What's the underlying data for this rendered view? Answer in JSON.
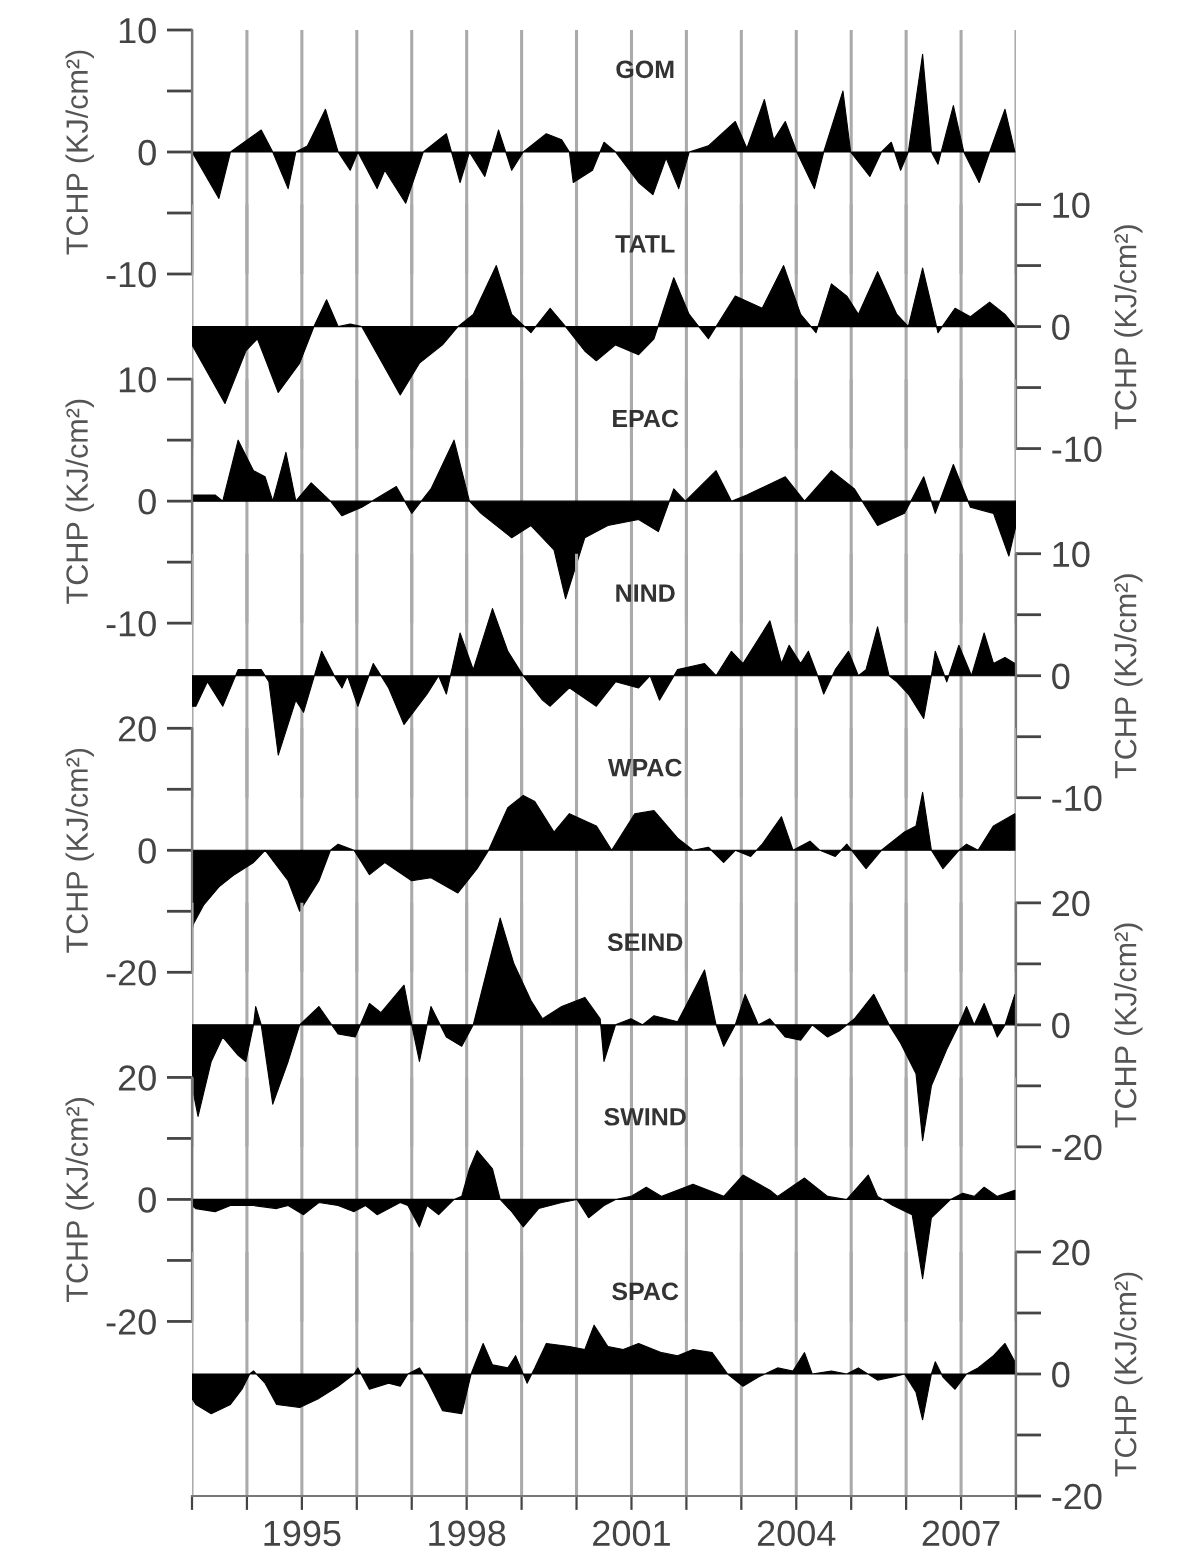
{
  "chart_data": [
    {
      "type": "area",
      "title": "GOM",
      "ylabel": "TCHP (KJ/cm²)",
      "grid": "x",
      "tick_labels": "y",
      "xlim": [
        1993,
        2008
      ],
      "xticks": [
        {
          "value": 1993,
          "label": null
        },
        {
          "value": 1994,
          "label": null
        },
        1995,
        {
          "value": 1996,
          "label": null
        },
        {
          "value": 1997,
          "label": null
        },
        1998,
        {
          "value": 1999,
          "label": null
        },
        {
          "value": 2000,
          "label": null
        },
        2001,
        {
          "value": 2002,
          "label": null
        },
        {
          "value": 2003,
          "label": null
        },
        2004,
        {
          "value": 2005,
          "label": null
        },
        {
          "value": 2006,
          "label": null
        },
        2007,
        {
          "value": 2008,
          "label": null
        }
      ],
      "ylim": [
        -10,
        10
      ],
      "yticks": [
        -10,
        {
          "value": -5,
          "label": null
        },
        0,
        {
          "value": 5,
          "label": null
        },
        10
      ],
      "series": [
        {
          "color": "#000000",
          "x": [
            1993.0,
            1993.49,
            1993.7,
            1994.26,
            1994.47,
            1994.75,
            1994.89,
            1995.1,
            1995.43,
            1995.66,
            1995.88,
            1996.02,
            1996.37,
            1996.51,
            1996.89,
            1997.21,
            1997.63,
            1997.88,
            1998.05,
            1998.33,
            1998.58,
            1998.82,
            1999.03,
            1999.45,
            1999.73,
            1999.87,
            1999.94,
            2000.29,
            2000.5,
            2000.71,
            2001.13,
            2001.39,
            2001.63,
            2001.86,
            2002.05,
            2002.4,
            2002.89,
            2003.1,
            2003.42,
            2003.59,
            2003.8,
            2004.01,
            2004.33,
            2004.5,
            2004.71,
            2004.85,
            2004.99,
            2005.34,
            2005.55,
            2005.73,
            2005.9,
            2006.04,
            2006.3,
            2006.46,
            2006.58,
            2006.86,
            2007.05,
            2007.33,
            2007.52,
            2007.8,
            2007.98
          ],
          "values": [
            0,
            -3.8,
            0,
            1.8,
            0,
            -3,
            0,
            0.5,
            3.5,
            0,
            -1.5,
            0,
            -3,
            -1.5,
            -4.2,
            0,
            1.5,
            -2.5,
            0,
            -2,
            1.8,
            -1.5,
            0,
            1.5,
            1,
            0,
            -2.5,
            -1.5,
            0.8,
            0,
            -2.5,
            -3.5,
            -0.5,
            -3,
            0,
            0.5,
            2.5,
            0.3,
            4.3,
            1,
            2.5,
            0,
            -3,
            0,
            3,
            5,
            0,
            -2,
            0,
            0.8,
            -1.5,
            0,
            8,
            0,
            -1,
            3.8,
            0,
            -2.5,
            0,
            3.5,
            0
          ]
        }
      ]
    },
    {
      "type": "area",
      "title": "TATL",
      "y2label": "TCHP (KJ/cm²)",
      "grid": "x",
      "tick_labels": "y",
      "xlim": [
        1993,
        2008
      ],
      "xticks": [
        {
          "value": 1993,
          "label": null
        },
        {
          "value": 1994,
          "label": null
        },
        1995,
        {
          "value": 1996,
          "label": null
        },
        {
          "value": 1997,
          "label": null
        },
        1998,
        {
          "value": 1999,
          "label": null
        },
        {
          "value": 2000,
          "label": null
        },
        2001,
        {
          "value": 2002,
          "label": null
        },
        {
          "value": 2003,
          "label": null
        },
        2004,
        {
          "value": 2005,
          "label": null
        },
        {
          "value": 2006,
          "label": null
        },
        2007,
        {
          "value": 2008,
          "label": null
        }
      ],
      "y2lim": [
        -10,
        10
      ],
      "y2ticks": [
        -10,
        {
          "value": -5,
          "label": null
        },
        0,
        {
          "value": 5,
          "label": null
        },
        10
      ],
      "series": [
        {
          "axis": "y2",
          "color": "#000000",
          "x": [
            1993.0,
            1993.6,
            1993.98,
            1994.19,
            1994.57,
            1994.96,
            1995.22,
            1995.45,
            1995.66,
            1995.88,
            1996.09,
            1996.79,
            1997.14,
            1997.56,
            1997.84,
            1998.12,
            1998.54,
            1998.82,
            1999.17,
            1999.52,
            1999.8,
            2000.15,
            2000.36,
            2000.71,
            2001.13,
            2001.41,
            2001.77,
            2002.05,
            2002.4,
            2002.89,
            2003.38,
            2003.77,
            2004.08,
            2004.36,
            2004.64,
            2004.92,
            2005.13,
            2005.48,
            2005.83,
            2006.04,
            2006.3,
            2006.58,
            2006.89,
            2007.17,
            2007.52,
            2007.8,
            2007.98
          ],
          "values": [
            -1.5,
            -6.3,
            -2,
            -1,
            -5.4,
            -3,
            0,
            2.2,
            0,
            0.2,
            0,
            -5.6,
            -3,
            -1.5,
            0,
            1,
            5,
            1,
            -0.5,
            1.5,
            0,
            -2,
            -2.8,
            -1.5,
            -2.3,
            -1,
            4,
            1,
            -1,
            2.5,
            1.5,
            5,
            1,
            -0.5,
            3.5,
            2.5,
            1,
            4.5,
            1,
            0,
            4.8,
            -0.5,
            1.5,
            0.8,
            2,
            1,
            0
          ]
        }
      ]
    },
    {
      "type": "area",
      "title": "EPAC",
      "ylabel": "TCHP (KJ/cm²)",
      "grid": "x",
      "tick_labels": "y",
      "xlim": [
        1993,
        2008
      ],
      "xticks": [
        {
          "value": 1993,
          "label": null
        },
        {
          "value": 1994,
          "label": null
        },
        1995,
        {
          "value": 1996,
          "label": null
        },
        {
          "value": 1997,
          "label": null
        },
        1998,
        {
          "value": 1999,
          "label": null
        },
        {
          "value": 2000,
          "label": null
        },
        2001,
        {
          "value": 2002,
          "label": null
        },
        {
          "value": 2003,
          "label": null
        },
        2004,
        {
          "value": 2005,
          "label": null
        },
        {
          "value": 2006,
          "label": null
        },
        2007,
        {
          "value": 2008,
          "label": null
        }
      ],
      "ylim": [
        -10,
        10
      ],
      "yticks": [
        -10,
        {
          "value": -5,
          "label": null
        },
        0,
        {
          "value": 5,
          "label": null
        },
        10
      ],
      "series": [
        {
          "color": "#000000",
          "x": [
            1993.0,
            1993.42,
            1993.56,
            1993.84,
            1994.12,
            1994.33,
            1994.47,
            1994.71,
            1994.89,
            1995.17,
            1995.52,
            1995.73,
            1996.09,
            1996.72,
            1997.0,
            1997.35,
            1997.77,
            1998.05,
            1998.26,
            1998.82,
            1999.17,
            1999.59,
            1999.8,
            2000.15,
            2000.57,
            2001.13,
            2001.49,
            2001.77,
            2001.98,
            2002.54,
            2002.82,
            2003.1,
            2003.8,
            2004.15,
            2004.64,
            2005.06,
            2005.48,
            2005.97,
            2006.32,
            2006.53,
            2006.86,
            2007.17,
            2007.59,
            2007.87,
            2008.0
          ],
          "values": [
            0.5,
            0.5,
            0,
            5,
            2.5,
            2,
            0,
            4,
            0,
            1.5,
            0,
            -1.2,
            -0.5,
            1.2,
            -1,
            1,
            5,
            0,
            -1,
            -3,
            -2,
            -4,
            -8,
            -3,
            -2,
            -1.5,
            -2.5,
            1,
            0,
            2.5,
            0,
            0.5,
            2,
            0,
            2.5,
            1,
            -2,
            -1,
            2,
            -1,
            3,
            -0.5,
            -1,
            -4.5,
            -2
          ]
        }
      ]
    },
    {
      "type": "area",
      "title": "NIND",
      "y2label": "TCHP (KJ/cm²)",
      "grid": "x",
      "tick_labels": "y",
      "xlim": [
        1993,
        2008
      ],
      "xticks": [
        {
          "value": 1993,
          "label": null
        },
        {
          "value": 1994,
          "label": null
        },
        1995,
        {
          "value": 1996,
          "label": null
        },
        {
          "value": 1997,
          "label": null
        },
        1998,
        {
          "value": 1999,
          "label": null
        },
        {
          "value": 2000,
          "label": null
        },
        2001,
        {
          "value": 2002,
          "label": null
        },
        {
          "value": 2003,
          "label": null
        },
        2004,
        {
          "value": 2005,
          "label": null
        },
        {
          "value": 2006,
          "label": null
        },
        2007,
        {
          "value": 2008,
          "label": null
        }
      ],
      "y2lim": [
        -10,
        10
      ],
      "y2ticks": [
        -10,
        {
          "value": -5,
          "label": null
        },
        0,
        {
          "value": 5,
          "label": null
        },
        10
      ],
      "series": [
        {
          "axis": "y2",
          "color": "#000000",
          "x": [
            1993.0,
            1993.07,
            1993.28,
            1993.56,
            1993.84,
            1994.26,
            1994.4,
            1994.57,
            1994.89,
            1995.03,
            1995.36,
            1995.59,
            1995.73,
            1995.83,
            1996.02,
            1996.3,
            1996.58,
            1996.86,
            1997.28,
            1997.49,
            1997.63,
            1997.88,
            1998.12,
            1998.47,
            1998.75,
            1999.03,
            1999.38,
            1999.52,
            1999.87,
            2000.36,
            2000.71,
            2001.13,
            2001.34,
            2001.51,
            2001.84,
            2002.33,
            2002.54,
            2002.82,
            2003.03,
            2003.52,
            2003.73,
            2003.87,
            2004.08,
            2004.22,
            2004.39,
            2004.5,
            2004.71,
            2004.95,
            2005.13,
            2005.27,
            2005.48,
            2005.69,
            2005.83,
            2006.04,
            2006.32,
            2006.46,
            2006.53,
            2006.74,
            2006.96,
            2007.19,
            2007.42,
            2007.59,
            2007.8,
            2007.98
          ],
          "values": [
            -2.5,
            -2.5,
            -0.5,
            -2.5,
            0.5,
            0.5,
            -0.5,
            -6.5,
            -2,
            -3,
            2,
            0,
            -1,
            0,
            -2.5,
            1,
            -1,
            -4,
            -1.5,
            0,
            -1.5,
            3.5,
            0.5,
            5.5,
            2,
            0,
            -2,
            -2.5,
            -1,
            -2.5,
            -0.5,
            -1,
            0,
            -2,
            0.5,
            1,
            0,
            2,
            1,
            4.5,
            1,
            2.5,
            1,
            2,
            0,
            -1.5,
            0.5,
            2,
            0,
            0.5,
            4,
            0,
            -0.5,
            -1.5,
            -3.5,
            0,
            2,
            -0.5,
            2.5,
            0,
            3.5,
            1,
            1.5,
            1
          ]
        }
      ]
    },
    {
      "type": "area",
      "title": "WPAC",
      "ylabel": "TCHP (KJ/cm²)",
      "grid": "x",
      "tick_labels": "y",
      "xlim": [
        1993,
        2008
      ],
      "xticks": [
        {
          "value": 1993,
          "label": null
        },
        {
          "value": 1994,
          "label": null
        },
        1995,
        {
          "value": 1996,
          "label": null
        },
        {
          "value": 1997,
          "label": null
        },
        1998,
        {
          "value": 1999,
          "label": null
        },
        {
          "value": 2000,
          "label": null
        },
        2001,
        {
          "value": 2002,
          "label": null
        },
        {
          "value": 2003,
          "label": null
        },
        2004,
        {
          "value": 2005,
          "label": null
        },
        {
          "value": 2006,
          "label": null
        },
        2007,
        {
          "value": 2008,
          "label": null
        }
      ],
      "ylim": [
        -20,
        20
      ],
      "yticks": [
        -20,
        {
          "value": -10,
          "label": null
        },
        0,
        {
          "value": 10,
          "label": null
        },
        20
      ],
      "series": [
        {
          "color": "#000000",
          "x": [
            1993.0,
            1993.03,
            1993.21,
            1993.49,
            1993.77,
            1994.12,
            1994.33,
            1994.75,
            1994.96,
            1995.31,
            1995.52,
            1995.66,
            1995.95,
            1996.23,
            1996.51,
            1997.0,
            1997.35,
            1997.84,
            1998.19,
            1998.4,
            1998.75,
            1999.03,
            1999.24,
            1999.59,
            1999.87,
            2000.36,
            2000.64,
            2001.06,
            2001.41,
            2001.84,
            2002.12,
            2002.4,
            2002.68,
            2002.89,
            2003.17,
            2003.38,
            2003.73,
            2003.94,
            2004.25,
            2004.43,
            2004.71,
            2004.92,
            2005.27,
            2005.55,
            2005.97,
            2006.18,
            2006.3,
            2006.46,
            2006.67,
            2006.96,
            2007.1,
            2007.31,
            2007.59,
            2007.98
          ],
          "values": [
            -13,
            -12,
            -9,
            -6,
            -4,
            -2,
            0,
            -5,
            -10,
            -5,
            0,
            1,
            0,
            -4,
            -2,
            -5,
            -4.5,
            -7,
            -3,
            0,
            7,
            9,
            8,
            3,
            6,
            4,
            0,
            6,
            6.5,
            2,
            0,
            0.5,
            -2,
            0,
            -1,
            1,
            5.5,
            0,
            1.5,
            0,
            -1,
            1,
            -3,
            0,
            3,
            4,
            9.5,
            0,
            -3,
            0,
            1,
            0,
            4,
            6
          ]
        }
      ]
    },
    {
      "type": "area",
      "title": "SEIND",
      "y2label": "TCHP (KJ/cm²)",
      "grid": "x",
      "tick_labels": "y",
      "xlim": [
        1993,
        2008
      ],
      "xticks": [
        {
          "value": 1993,
          "label": null
        },
        {
          "value": 1994,
          "label": null
        },
        1995,
        {
          "value": 1996,
          "label": null
        },
        {
          "value": 1997,
          "label": null
        },
        1998,
        {
          "value": 1999,
          "label": null
        },
        {
          "value": 2000,
          "label": null
        },
        2001,
        {
          "value": 2002,
          "label": null
        },
        {
          "value": 2003,
          "label": null
        },
        2004,
        {
          "value": 2005,
          "label": null
        },
        {
          "value": 2006,
          "label": null
        },
        2007,
        {
          "value": 2008,
          "label": null
        }
      ],
      "y2lim": [
        -20,
        20
      ],
      "y2ticks": [
        -20,
        {
          "value": -10,
          "label": null
        },
        0,
        {
          "value": 10,
          "label": null
        },
        20
      ],
      "series": [
        {
          "axis": "y2",
          "color": "#000000",
          "x": [
            1993.0,
            1993.11,
            1993.35,
            1993.56,
            1993.84,
            1993.98,
            1994.12,
            1994.16,
            1994.26,
            1994.47,
            1994.75,
            1994.96,
            1995.31,
            1995.66,
            1995.97,
            1996.23,
            1996.44,
            1996.86,
            1997.0,
            1997.14,
            1997.35,
            1997.63,
            1997.91,
            1998.12,
            1998.4,
            1998.61,
            1998.86,
            1999.17,
            1999.38,
            1999.73,
            2000.15,
            2000.43,
            2000.5,
            2000.71,
            2000.99,
            2001.2,
            2001.41,
            2001.84,
            2002.33,
            2002.54,
            2002.68,
            2002.89,
            2003.07,
            2003.31,
            2003.52,
            2003.8,
            2004.08,
            2004.29,
            2004.57,
            2004.78,
            2005.06,
            2005.41,
            2005.69,
            2005.9,
            2006.18,
            2006.3,
            2006.46,
            2006.74,
            2006.96,
            2007.1,
            2007.24,
            2007.42,
            2007.66,
            2007.8,
            2007.98
          ],
          "values": [
            -10,
            -15,
            -6,
            -2,
            -5,
            -6,
            0,
            3,
            0,
            -13,
            -6,
            0,
            3,
            -1.5,
            -2,
            3.5,
            2,
            6.5,
            0,
            -6,
            3,
            -2,
            -3.5,
            0,
            10,
            17.5,
            10,
            4,
            1,
            3,
            4.5,
            1,
            -6,
            0,
            1,
            0,
            1.5,
            0.5,
            9,
            0,
            -3.5,
            0,
            5,
            0,
            1,
            -2,
            -2.5,
            0,
            -2,
            -1,
            1,
            5,
            0,
            -3,
            -8,
            -19,
            -10,
            -4,
            0,
            3,
            0,
            3.5,
            -2,
            0,
            5
          ]
        }
      ]
    },
    {
      "type": "area",
      "title": "SWIND",
      "ylabel": "TCHP (KJ/cm²)",
      "grid": "x",
      "tick_labels": "y",
      "xlim": [
        1993,
        2008
      ],
      "xticks": [
        {
          "value": 1993,
          "label": null
        },
        {
          "value": 1994,
          "label": null
        },
        1995,
        {
          "value": 1996,
          "label": null
        },
        {
          "value": 1997,
          "label": null
        },
        1998,
        {
          "value": 1999,
          "label": null
        },
        {
          "value": 2000,
          "label": null
        },
        2001,
        {
          "value": 2002,
          "label": null
        },
        {
          "value": 2003,
          "label": null
        },
        2004,
        {
          "value": 2005,
          "label": null
        },
        {
          "value": 2006,
          "label": null
        },
        2007,
        {
          "value": 2008,
          "label": null
        }
      ],
      "ylim": [
        -20,
        20
      ],
      "yticks": [
        -20,
        {
          "value": -10,
          "label": null
        },
        0,
        {
          "value": 10,
          "label": null
        },
        20
      ],
      "series": [
        {
          "color": "#000000",
          "x": [
            1993.0,
            1993.07,
            1993.42,
            1993.7,
            1994.12,
            1994.54,
            1994.75,
            1995.03,
            1995.31,
            1995.66,
            1995.95,
            1996.16,
            1996.37,
            1996.79,
            1996.93,
            1997.14,
            1997.28,
            1997.49,
            1997.77,
            1997.91,
            1998.05,
            1998.19,
            1998.47,
            1998.61,
            1998.82,
            1999.03,
            1999.31,
            1999.73,
            2000.01,
            2000.22,
            2000.5,
            2000.71,
            2000.99,
            2001.27,
            2001.55,
            2002.12,
            2002.54,
            2002.68,
            2003.03,
            2003.52,
            2003.66,
            2004.15,
            2004.57,
            2004.92,
            2005.31,
            2005.48,
            2005.76,
            2006.11,
            2006.3,
            2006.46,
            2006.81,
            2007.03,
            2007.24,
            2007.42,
            2007.66,
            2007.98
          ],
          "values": [
            -1,
            -1.5,
            -2,
            -1,
            -1,
            -1.5,
            -1,
            -2.5,
            -0.5,
            -1,
            -2,
            -1,
            -2.5,
            -0.5,
            -1,
            -4.5,
            -1,
            -2.5,
            0,
            0.5,
            5,
            8,
            5,
            0,
            -2,
            -4.5,
            -1.5,
            -0.5,
            0,
            -3,
            -1,
            0,
            0.5,
            2,
            0.5,
            2.5,
            1,
            0.5,
            4,
            1.5,
            0.5,
            3.5,
            0.5,
            0,
            4,
            0.5,
            -1,
            -2.5,
            -13,
            -3,
            0,
            1,
            0.5,
            2,
            0.5,
            1.5
          ]
        }
      ]
    },
    {
      "type": "area",
      "title": "SPAC",
      "y2label": "TCHP (KJ/cm²)",
      "grid": "x",
      "xlim": [
        1993,
        2008
      ],
      "xticks": [
        {
          "value": 1993,
          "label": null
        },
        {
          "value": 1994,
          "label": null
        },
        1995,
        {
          "value": 1996,
          "label": null
        },
        {
          "value": 1997,
          "label": null
        },
        1998,
        {
          "value": 1999,
          "label": null
        },
        {
          "value": 2000,
          "label": null
        },
        2001,
        {
          "value": 2002,
          "label": null
        },
        {
          "value": 2003,
          "label": null
        },
        2004,
        {
          "value": 2005,
          "label": null
        },
        {
          "value": 2006,
          "label": null
        },
        2007,
        {
          "value": 2008,
          "label": null
        }
      ],
      "y2lim": [
        -20,
        20
      ],
      "y2ticks": [
        -20,
        {
          "value": -10,
          "label": null
        },
        0,
        {
          "value": 10,
          "label": null
        },
        20
      ],
      "series": [
        {
          "axis": "y2",
          "color": "#000000",
          "x": [
            1993.0,
            1993.07,
            1993.35,
            1993.7,
            1993.91,
            1994.05,
            1994.12,
            1994.33,
            1994.54,
            1994.96,
            1995.31,
            1995.66,
            1995.95,
            1996.02,
            1996.23,
            1996.58,
            1996.79,
            1996.93,
            1997.14,
            1997.28,
            1997.56,
            1997.91,
            1998.08,
            1998.3,
            1998.47,
            1998.75,
            1998.89,
            1999.1,
            1999.24,
            1999.45,
            1999.87,
            2000.15,
            2000.32,
            2000.57,
            2000.85,
            2001.13,
            2001.55,
            2001.84,
            2002.12,
            2002.47,
            2002.75,
            2003.03,
            2003.31,
            2003.66,
            2003.94,
            2004.15,
            2004.29,
            2004.64,
            2004.92,
            2005.13,
            2005.48,
            2005.76,
            2005.97,
            2006.18,
            2006.3,
            2006.46,
            2006.53,
            2006.67,
            2006.89,
            2007.1,
            2007.31,
            2007.59,
            2007.8,
            2007.98
          ],
          "values": [
            -4,
            -5,
            -6.5,
            -5,
            -2.5,
            0,
            0.5,
            -1.5,
            -5,
            -5.5,
            -4,
            -2,
            0,
            1,
            -2.5,
            -1.5,
            -2,
            0,
            1,
            -1,
            -6,
            -6.5,
            0,
            5,
            1.5,
            1,
            3,
            -1.5,
            1,
            5,
            4.5,
            4,
            8,
            4.5,
            4,
            5,
            3.5,
            3,
            4,
            3.5,
            0,
            -2,
            -0.5,
            1,
            0.5,
            3.5,
            0,
            0.5,
            0,
            1,
            -1,
            -0.5,
            0,
            -3,
            -7.5,
            0,
            2,
            -0.5,
            -2.5,
            0,
            1,
            3,
            5,
            2
          ]
        }
      ]
    }
  ]
}
